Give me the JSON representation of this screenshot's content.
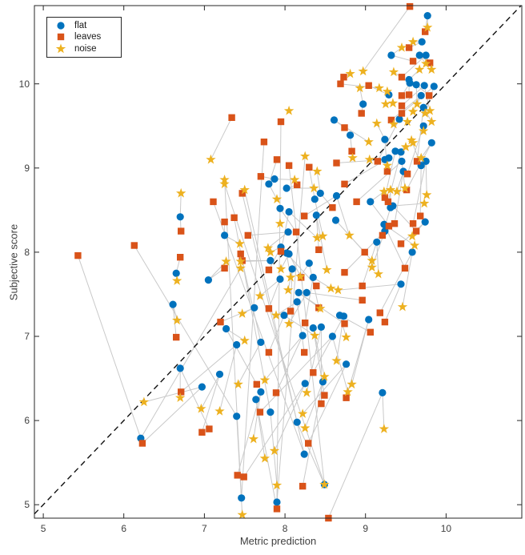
{
  "figure": {
    "background": "#ffffff"
  },
  "chart_data": {
    "type": "scatter",
    "title": "",
    "xlabel": "Metric prediction",
    "ylabel": "Subjective score",
    "xlim": [
      4.89,
      10.94
    ],
    "ylim": [
      4.84,
      10.93
    ],
    "x_ticks": [
      "5",
      "6",
      "7",
      "8",
      "9",
      "10"
    ],
    "y_ticks": [
      "5",
      "6",
      "7",
      "8",
      "9",
      "10"
    ],
    "grid": false,
    "legend_position": "top-left",
    "axis_color": "#262626",
    "text_color": "#404040",
    "connector_color": "#c9c9c9",
    "reference_line": {
      "meaning": "identity y=x",
      "style": "dashed",
      "color": "#111111",
      "from": [
        4.89,
        4.89
      ],
      "to": [
        10.93,
        10.93
      ]
    },
    "series": [
      {
        "name": "flat",
        "marker": "circle",
        "color": "#0072BD",
        "points": [
          [
            9.77,
            10.81
          ],
          [
            9.7,
            10.5
          ],
          [
            9.32,
            10.34
          ],
          [
            9.67,
            10.34
          ],
          [
            9.75,
            10.34
          ],
          [
            9.54,
            10.05
          ],
          [
            9.55,
            10.01
          ],
          [
            9.63,
            9.99
          ],
          [
            9.73,
            9.98
          ],
          [
            9.85,
            9.97
          ],
          [
            9.29,
            9.87
          ],
          [
            9.69,
            9.86
          ],
          [
            8.97,
            9.76
          ],
          [
            9.72,
            9.72
          ],
          [
            9.42,
            9.58
          ],
          [
            8.61,
            9.57
          ],
          [
            9.72,
            9.5
          ],
          [
            8.81,
            9.39
          ],
          [
            9.24,
            9.34
          ],
          [
            9.82,
            9.3
          ],
          [
            9.37,
            9.2
          ],
          [
            9.44,
            9.19
          ],
          [
            9.29,
            9.12
          ],
          [
            9.24,
            9.1
          ],
          [
            9.69,
            9.03
          ],
          [
            9.75,
            9.08
          ],
          [
            9.45,
            9.08
          ],
          [
            9.47,
            8.96
          ],
          [
            7.87,
            8.87
          ],
          [
            7.8,
            8.81
          ],
          [
            8.02,
            8.76
          ],
          [
            8.44,
            8.7
          ],
          [
            8.64,
            8.67
          ],
          [
            8.37,
            8.63
          ],
          [
            9.06,
            8.6
          ],
          [
            9.31,
            8.53
          ],
          [
            9.34,
            8.55
          ],
          [
            7.94,
            8.52
          ],
          [
            8.05,
            8.48
          ],
          [
            8.39,
            8.44
          ],
          [
            6.7,
            8.42
          ],
          [
            8.63,
            8.38
          ],
          [
            9.74,
            8.36
          ],
          [
            9.23,
            8.33
          ],
          [
            9.24,
            8.25
          ],
          [
            7.25,
            8.2
          ],
          [
            8.04,
            8.24
          ],
          [
            9.14,
            8.12
          ],
          [
            7.95,
            8.06
          ],
          [
            9.58,
            8.0
          ],
          [
            8.05,
            7.98
          ],
          [
            8.02,
            7.99
          ],
          [
            7.82,
            7.9
          ],
          [
            8.3,
            7.87
          ],
          [
            8.09,
            7.8
          ],
          [
            6.65,
            7.75
          ],
          [
            7.05,
            7.67
          ],
          [
            7.94,
            7.68
          ],
          [
            8.35,
            7.7
          ],
          [
            9.44,
            7.62
          ],
          [
            8.17,
            7.52
          ],
          [
            8.27,
            7.52
          ],
          [
            8.15,
            7.41
          ],
          [
            6.61,
            7.38
          ],
          [
            7.62,
            7.34
          ],
          [
            7.99,
            7.25
          ],
          [
            8.68,
            7.25
          ],
          [
            8.73,
            7.24
          ],
          [
            9.04,
            7.2
          ],
          [
            7.27,
            7.09
          ],
          [
            8.35,
            7.1
          ],
          [
            8.45,
            7.11
          ],
          [
            8.22,
            7.01
          ],
          [
            8.59,
            7.0
          ],
          [
            7.7,
            6.93
          ],
          [
            7.4,
            6.9
          ],
          [
            8.76,
            6.67
          ],
          [
            6.7,
            6.62
          ],
          [
            7.19,
            6.55
          ],
          [
            8.47,
            6.46
          ],
          [
            8.25,
            6.44
          ],
          [
            7.7,
            6.34
          ],
          [
            9.21,
            6.33
          ],
          [
            6.97,
            6.4
          ],
          [
            7.64,
            6.25
          ],
          [
            7.82,
            6.1
          ],
          [
            7.4,
            6.05
          ],
          [
            8.15,
            5.98
          ],
          [
            6.21,
            5.79
          ],
          [
            8.24,
            5.6
          ],
          [
            8.49,
            5.24
          ],
          [
            7.46,
            5.08
          ],
          [
            7.9,
            5.03
          ]
        ]
      },
      {
        "name": "leaves",
        "marker": "square",
        "color": "#D95319",
        "points": [
          [
            9.55,
            10.92
          ],
          [
            9.74,
            10.62
          ],
          [
            9.54,
            10.43
          ],
          [
            9.59,
            10.27
          ],
          [
            9.8,
            10.25
          ],
          [
            8.73,
            10.08
          ],
          [
            9.45,
            10.08
          ],
          [
            8.69,
            10.0
          ],
          [
            9.04,
            9.98
          ],
          [
            9.54,
            9.87
          ],
          [
            9.45,
            9.86
          ],
          [
            9.79,
            9.86
          ],
          [
            9.45,
            9.74
          ],
          [
            8.95,
            9.65
          ],
          [
            9.45,
            9.65
          ],
          [
            7.34,
            9.6
          ],
          [
            9.32,
            9.57
          ],
          [
            7.95,
            9.55
          ],
          [
            8.74,
            9.48
          ],
          [
            7.74,
            9.31
          ],
          [
            8.83,
            9.2
          ],
          [
            7.9,
            9.1
          ],
          [
            8.64,
            9.06
          ],
          [
            9.15,
            9.08
          ],
          [
            9.64,
            9.08
          ],
          [
            8.05,
            9.03
          ],
          [
            8.3,
            9.01
          ],
          [
            9.27,
            8.96
          ],
          [
            9.52,
            8.93
          ],
          [
            7.7,
            8.9
          ],
          [
            8.74,
            8.81
          ],
          [
            8.15,
            8.8
          ],
          [
            9.51,
            8.74
          ],
          [
            7.47,
            8.7
          ],
          [
            9.24,
            8.65
          ],
          [
            7.11,
            8.6
          ],
          [
            8.89,
            8.6
          ],
          [
            9.28,
            8.6
          ],
          [
            8.59,
            8.53
          ],
          [
            8.24,
            8.43
          ],
          [
            9.68,
            8.43
          ],
          [
            7.37,
            8.41
          ],
          [
            7.25,
            8.36
          ],
          [
            9.36,
            8.34
          ],
          [
            9.59,
            8.34
          ],
          [
            9.29,
            8.31
          ],
          [
            6.71,
            8.25
          ],
          [
            9.63,
            8.25
          ],
          [
            8.14,
            8.24
          ],
          [
            7.54,
            8.2
          ],
          [
            9.21,
            8.2
          ],
          [
            6.13,
            8.08
          ],
          [
            9.44,
            8.1
          ],
          [
            8.42,
            8.03
          ],
          [
            7.95,
            8.01
          ],
          [
            8.99,
            8.0
          ],
          [
            7.45,
            7.98
          ],
          [
            5.43,
            7.96
          ],
          [
            6.7,
            7.94
          ],
          [
            7.47,
            7.9
          ],
          [
            7.25,
            7.81
          ],
          [
            9.49,
            7.81
          ],
          [
            7.8,
            7.79
          ],
          [
            8.74,
            7.76
          ],
          [
            8.2,
            7.7
          ],
          [
            8.39,
            7.6
          ],
          [
            8.96,
            7.6
          ],
          [
            8.96,
            7.43
          ],
          [
            8.42,
            7.34
          ],
          [
            7.8,
            7.33
          ],
          [
            8.07,
            7.3
          ],
          [
            9.18,
            7.28
          ],
          [
            7.2,
            7.17
          ],
          [
            8.25,
            7.16
          ],
          [
            9.24,
            7.17
          ],
          [
            8.74,
            7.15
          ],
          [
            9.06,
            7.05
          ],
          [
            6.65,
            6.99
          ],
          [
            7.8,
            6.81
          ],
          [
            8.24,
            6.81
          ],
          [
            8.35,
            6.57
          ],
          [
            7.65,
            6.43
          ],
          [
            6.71,
            6.34
          ],
          [
            7.89,
            6.33
          ],
          [
            8.49,
            6.3
          ],
          [
            8.76,
            6.27
          ],
          [
            8.45,
            6.2
          ],
          [
            7.69,
            6.1
          ],
          [
            7.06,
            5.9
          ],
          [
            6.97,
            5.86
          ],
          [
            8.29,
            5.73
          ],
          [
            6.23,
            5.73
          ],
          [
            7.41,
            5.35
          ],
          [
            7.49,
            5.33
          ],
          [
            8.22,
            5.22
          ],
          [
            7.9,
            4.95
          ],
          [
            8.54,
            4.84
          ]
        ]
      },
      {
        "name": "noise",
        "marker": "star",
        "color": "#EDB120",
        "points": [
          [
            9.77,
            10.67
          ],
          [
            9.59,
            10.5
          ],
          [
            9.45,
            10.43
          ],
          [
            9.75,
            10.24
          ],
          [
            9.67,
            10.17
          ],
          [
            9.82,
            10.17
          ],
          [
            8.97,
            10.15
          ],
          [
            9.35,
            10.14
          ],
          [
            8.81,
            10.12
          ],
          [
            9.17,
            9.95
          ],
          [
            8.93,
            9.95
          ],
          [
            9.27,
            9.91
          ],
          [
            9.25,
            9.76
          ],
          [
            9.34,
            9.77
          ],
          [
            9.64,
            9.76
          ],
          [
            8.05,
            9.68
          ],
          [
            9.8,
            9.68
          ],
          [
            9.59,
            9.67
          ],
          [
            9.74,
            9.65
          ],
          [
            9.52,
            9.55
          ],
          [
            9.82,
            9.55
          ],
          [
            9.14,
            9.53
          ],
          [
            9.35,
            9.52
          ],
          [
            9.72,
            9.44
          ],
          [
            9.04,
            9.31
          ],
          [
            9.57,
            9.33
          ],
          [
            9.59,
            9.3
          ],
          [
            9.5,
            9.25
          ],
          [
            8.25,
            9.14
          ],
          [
            8.84,
            9.12
          ],
          [
            9.69,
            9.12
          ],
          [
            7.08,
            9.1
          ],
          [
            9.05,
            9.1
          ],
          [
            9.27,
            9.03
          ],
          [
            8.4,
            8.96
          ],
          [
            8.12,
            8.86
          ],
          [
            7.25,
            8.86
          ],
          [
            7.25,
            8.81
          ],
          [
            8.36,
            8.76
          ],
          [
            7.5,
            8.74
          ],
          [
            9.31,
            8.74
          ],
          [
            9.49,
            8.76
          ],
          [
            9.23,
            8.72
          ],
          [
            9.39,
            8.72
          ],
          [
            6.71,
            8.7
          ],
          [
            9.76,
            8.68
          ],
          [
            7.9,
            8.63
          ],
          [
            9.73,
            8.58
          ],
          [
            7.94,
            8.34
          ],
          [
            8.8,
            8.2
          ],
          [
            8.4,
            8.17
          ],
          [
            8.47,
            8.19
          ],
          [
            9.58,
            8.19
          ],
          [
            7.79,
            8.05
          ],
          [
            7.82,
            8.0
          ],
          [
            7.44,
            8.1
          ],
          [
            9.61,
            8.08
          ],
          [
            7.27,
            7.89
          ],
          [
            7.45,
            7.89
          ],
          [
            9.08,
            7.9
          ],
          [
            9.08,
            7.82
          ],
          [
            7.45,
            7.81
          ],
          [
            7.95,
            7.8
          ],
          [
            9.16,
            7.74
          ],
          [
            8.07,
            7.7
          ],
          [
            8.19,
            7.71
          ],
          [
            8.52,
            7.79
          ],
          [
            8.04,
            7.55
          ],
          [
            8.57,
            7.57
          ],
          [
            8.66,
            7.55
          ],
          [
            7.69,
            7.48
          ],
          [
            9.46,
            7.35
          ],
          [
            8.44,
            7.33
          ],
          [
            7.47,
            7.27
          ],
          [
            7.89,
            7.25
          ],
          [
            6.66,
            7.66
          ],
          [
            6.66,
            7.19
          ],
          [
            8.05,
            7.15
          ],
          [
            8.37,
            7.01
          ],
          [
            8.76,
            6.99
          ],
          [
            7.5,
            6.95
          ],
          [
            8.64,
            6.71
          ],
          [
            8.49,
            6.52
          ],
          [
            7.75,
            6.48
          ],
          [
            7.42,
            6.43
          ],
          [
            8.83,
            6.43
          ],
          [
            8.78,
            6.34
          ],
          [
            8.27,
            6.33
          ],
          [
            6.7,
            6.27
          ],
          [
            6.25,
            6.22
          ],
          [
            6.96,
            6.14
          ],
          [
            7.19,
            6.11
          ],
          [
            8.22,
            6.08
          ],
          [
            8.25,
            5.91
          ],
          [
            9.23,
            5.9
          ],
          [
            7.61,
            5.78
          ],
          [
            7.87,
            5.64
          ],
          [
            7.75,
            5.55
          ],
          [
            7.9,
            5.23
          ],
          [
            8.49,
            5.24
          ],
          [
            7.47,
            4.88
          ]
        ]
      }
    ]
  }
}
